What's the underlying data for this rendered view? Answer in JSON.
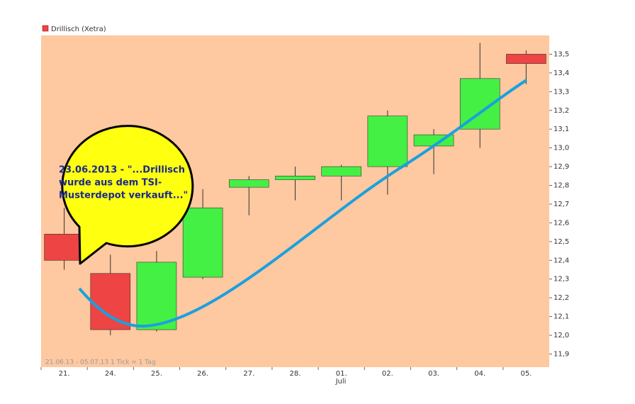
{
  "chart_data": {
    "type": "candlestick",
    "legend": "Drillisch (Xetra)",
    "footer": "21.06.13 - 05.07.13   1 Tick = 1 Tag",
    "month_label": "Juli",
    "annotation": [
      "23.06.2013 -  \"...Drillisch",
      "wurde aus dem TSI-",
      "Musterdepot verkauft...\""
    ],
    "categories": [
      "21.",
      "24.",
      "25.",
      "26.",
      "27.",
      "28.",
      "01.",
      "02.",
      "03.",
      "04.",
      "05."
    ],
    "open": [
      12.54,
      12.33,
      12.03,
      12.31,
      12.79,
      12.83,
      12.85,
      12.9,
      13.01,
      13.1,
      13.5
    ],
    "high": [
      12.68,
      12.43,
      12.45,
      12.78,
      12.85,
      12.9,
      12.91,
      13.2,
      13.1,
      13.56,
      13.52
    ],
    "low": [
      12.35,
      12.0,
      12.02,
      12.3,
      12.64,
      12.72,
      12.72,
      12.75,
      12.86,
      13.0,
      13.34
    ],
    "close": [
      12.4,
      12.03,
      12.39,
      12.68,
      12.83,
      12.85,
      12.9,
      13.17,
      13.07,
      13.37,
      13.45
    ],
    "up_color": "#44f044",
    "down_color": "#ee4444",
    "ylim": [
      11.83,
      13.6
    ],
    "yticks": [
      {
        "value": 11.9,
        "label": "11,9"
      },
      {
        "value": 12.0,
        "label": "12,0"
      },
      {
        "value": 12.1,
        "label": "12,1"
      },
      {
        "value": 12.2,
        "label": "12,2"
      },
      {
        "value": 12.3,
        "label": "12,3"
      },
      {
        "value": 12.4,
        "label": "12,4"
      },
      {
        "value": 12.5,
        "label": "12,5"
      },
      {
        "value": 12.6,
        "label": "12,6"
      },
      {
        "value": 12.7,
        "label": "12,7"
      },
      {
        "value": 12.8,
        "label": "12,8"
      },
      {
        "value": 12.9,
        "label": "12,9"
      },
      {
        "value": 13.0,
        "label": "13,0"
      },
      {
        "value": 13.1,
        "label": "13,1"
      },
      {
        "value": 13.2,
        "label": "13,2"
      },
      {
        "value": 13.3,
        "label": "13,3"
      },
      {
        "value": 13.4,
        "label": "13,4"
      },
      {
        "value": 13.5,
        "label": "13,5"
      }
    ]
  }
}
